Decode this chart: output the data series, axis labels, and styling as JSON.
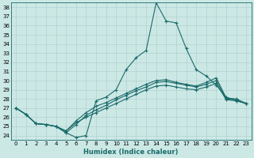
{
  "xlabel": "Humidex (Indice chaleur)",
  "bg_color": "#cce8e5",
  "grid_color": "#aaccca",
  "line_color": "#1a6b6b",
  "xlim": [
    -0.5,
    23.5
  ],
  "ylim": [
    23.5,
    38.5
  ],
  "yticks": [
    24,
    25,
    26,
    27,
    28,
    29,
    30,
    31,
    32,
    33,
    34,
    35,
    36,
    37,
    38
  ],
  "xticks": [
    0,
    1,
    2,
    3,
    4,
    5,
    6,
    7,
    8,
    9,
    10,
    11,
    12,
    13,
    14,
    15,
    16,
    17,
    18,
    19,
    20,
    21,
    22,
    23
  ],
  "line1_x": [
    0,
    1,
    2,
    3,
    4,
    5,
    6,
    7,
    8,
    9,
    10,
    11,
    12,
    13,
    14,
    15,
    16,
    17,
    18,
    19,
    20,
    21,
    22,
    23
  ],
  "line1_y": [
    27.0,
    26.3,
    25.3,
    25.2,
    25.0,
    24.3,
    23.8,
    24.0,
    27.8,
    28.2,
    29.0,
    31.2,
    32.5,
    33.3,
    38.5,
    36.5,
    36.3,
    33.5,
    31.2,
    30.5,
    29.5,
    28.2,
    27.8,
    27.5
  ],
  "line2_x": [
    0,
    1,
    2,
    3,
    4,
    5,
    6,
    7,
    8,
    9,
    10,
    11,
    12,
    13,
    14,
    15,
    16,
    17,
    18,
    19,
    20,
    21,
    22,
    23
  ],
  "line2_y": [
    27.0,
    26.3,
    25.3,
    25.2,
    25.0,
    24.3,
    25.2,
    26.2,
    26.8,
    27.3,
    27.9,
    28.4,
    28.9,
    29.3,
    29.8,
    29.9,
    29.7,
    29.5,
    29.3,
    29.6,
    30.0,
    28.0,
    27.9,
    27.5
  ],
  "line3_x": [
    0,
    1,
    2,
    3,
    4,
    5,
    6,
    7,
    8,
    9,
    10,
    11,
    12,
    13,
    14,
    15,
    16,
    17,
    18,
    19,
    20,
    21,
    22,
    23
  ],
  "line3_y": [
    27.0,
    26.3,
    25.3,
    25.2,
    25.0,
    24.5,
    25.4,
    26.0,
    26.5,
    27.0,
    27.5,
    28.0,
    28.5,
    29.0,
    29.4,
    29.5,
    29.3,
    29.1,
    29.0,
    29.3,
    29.7,
    27.9,
    27.8,
    27.5
  ],
  "line4_x": [
    0,
    1,
    2,
    3,
    4,
    5,
    6,
    7,
    8,
    9,
    10,
    11,
    12,
    13,
    14,
    15,
    16,
    17,
    18,
    19,
    20,
    21,
    22,
    23
  ],
  "line4_y": [
    27.0,
    26.3,
    25.3,
    25.2,
    25.0,
    24.5,
    25.6,
    26.5,
    27.2,
    27.6,
    28.1,
    28.6,
    29.1,
    29.6,
    30.0,
    30.1,
    29.8,
    29.6,
    29.4,
    29.8,
    30.3,
    28.1,
    28.0,
    27.5
  ],
  "marker": "+",
  "markersize": 3,
  "linewidth": 0.8
}
